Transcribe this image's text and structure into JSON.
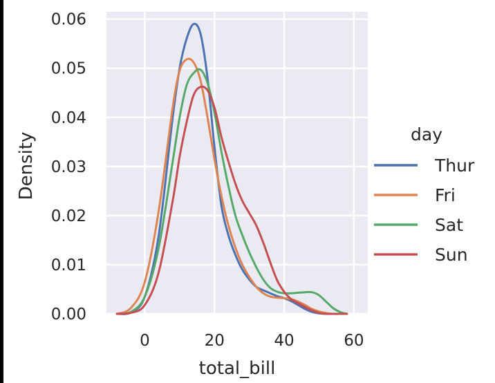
{
  "chart_data": {
    "type": "line",
    "xlabel": "total_bill",
    "ylabel": "Density",
    "xlim": [
      -11,
      64
    ],
    "ylim": [
      0,
      0.0615
    ],
    "x_ticks": [
      0,
      20,
      40,
      60
    ],
    "y_ticks": [
      0.0,
      0.01,
      0.02,
      0.03,
      0.04,
      0.05,
      0.06
    ],
    "x_tick_labels": [
      "0",
      "20",
      "40",
      "60"
    ],
    "y_tick_labels": [
      "0.00",
      "0.01",
      "0.02",
      "0.03",
      "0.04",
      "0.05",
      "0.06"
    ],
    "grid": true,
    "legend": {
      "title": "day",
      "position": "right"
    },
    "x": [
      -8,
      -4,
      0,
      4,
      8,
      10,
      12,
      14,
      16,
      18,
      20,
      22,
      24,
      26,
      28,
      30,
      32,
      34,
      36,
      38,
      40,
      42,
      44,
      46,
      48,
      50,
      52,
      54,
      56,
      58
    ],
    "series": [
      {
        "name": "Thur",
        "color": "#4c72b0",
        "values": [
          0.0,
          0.0003,
          0.0035,
          0.016,
          0.04,
          0.05,
          0.056,
          0.059,
          0.057,
          0.048,
          0.034,
          0.022,
          0.016,
          0.012,
          0.009,
          0.007,
          0.0055,
          0.0048,
          0.0042,
          0.0036,
          0.0032,
          0.0026,
          0.0018,
          0.001,
          0.0004,
          0.0001,
          0.0,
          0.0,
          0.0,
          0.0
        ]
      },
      {
        "name": "Fri",
        "color": "#dd8452",
        "values": [
          0.0,
          0.0012,
          0.0065,
          0.021,
          0.042,
          0.0495,
          0.0518,
          0.0512,
          0.0475,
          0.04,
          0.0315,
          0.024,
          0.018,
          0.0135,
          0.01,
          0.0075,
          0.0055,
          0.0042,
          0.0035,
          0.0033,
          0.0032,
          0.003,
          0.0025,
          0.0018,
          0.001,
          0.0005,
          0.0002,
          0.0,
          0.0,
          0.0
        ]
      },
      {
        "name": "Sat",
        "color": "#55a868",
        "values": [
          0.0,
          0.0004,
          0.0035,
          0.0135,
          0.031,
          0.04,
          0.0465,
          0.049,
          0.0497,
          0.047,
          0.041,
          0.033,
          0.026,
          0.02,
          0.016,
          0.0125,
          0.0095,
          0.007,
          0.0053,
          0.0045,
          0.0042,
          0.0042,
          0.0043,
          0.0044,
          0.0044,
          0.0038,
          0.0025,
          0.0012,
          0.0004,
          0.0
        ]
      },
      {
        "name": "Sun",
        "color": "#c44e52",
        "values": [
          0.0,
          0.0002,
          0.0018,
          0.0085,
          0.023,
          0.032,
          0.039,
          0.0445,
          0.0462,
          0.0455,
          0.042,
          0.036,
          0.031,
          0.0265,
          0.023,
          0.0205,
          0.018,
          0.0145,
          0.0105,
          0.0068,
          0.0045,
          0.003,
          0.0022,
          0.0014,
          0.0007,
          0.0002,
          0.0,
          0.0,
          0.0,
          0.0
        ]
      }
    ]
  }
}
